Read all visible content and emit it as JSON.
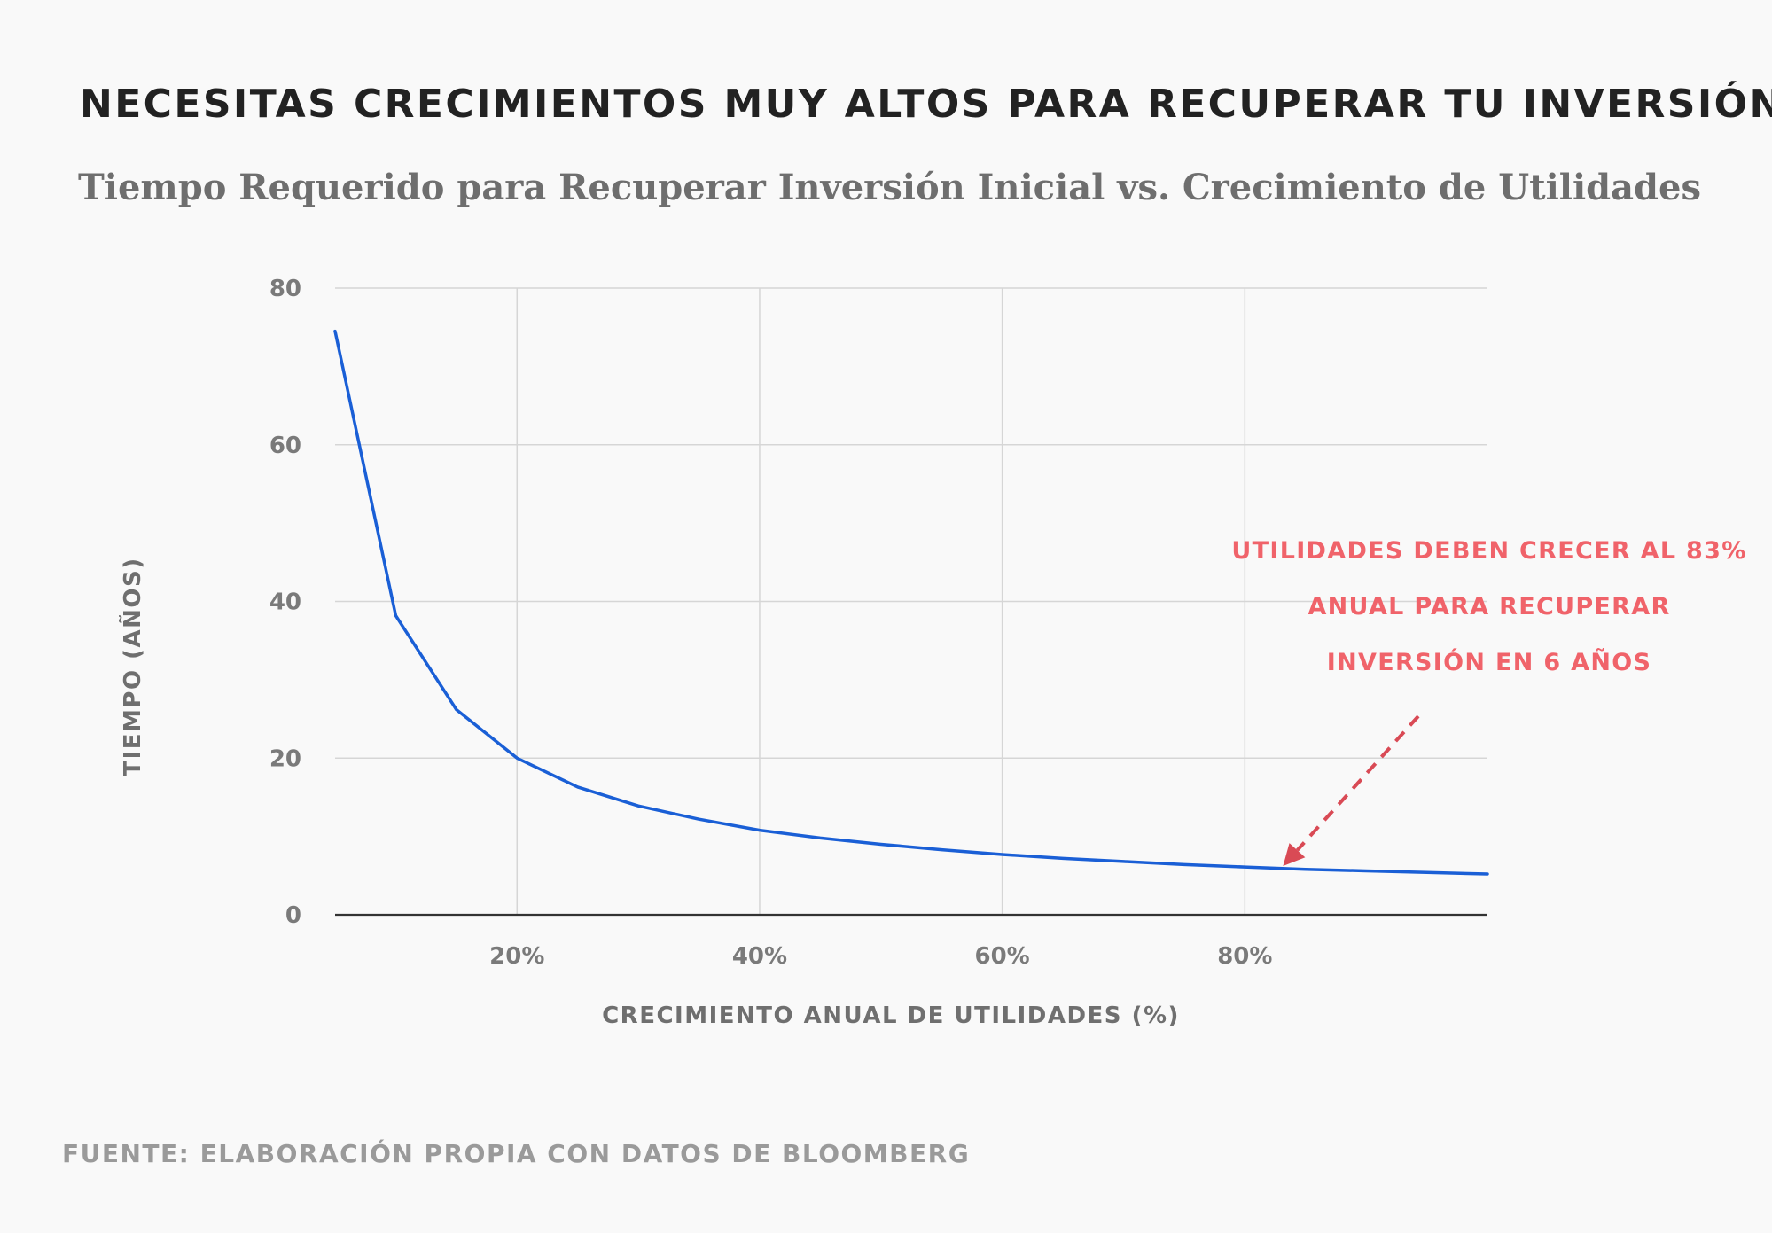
{
  "header": {
    "title": "NECESITAS CRECIMIENTOS MUY ALTOS PARA RECUPERAR TU INVERSIÓN",
    "subtitle": "Tiempo Requerido para Recuperar Inversión Inicial vs. Crecimiento de Utilidades"
  },
  "footer": {
    "source": "FUENTE: ELABORACIÓN PROPIA CON DATOS DE BLOOMBERG"
  },
  "chart_data": {
    "type": "line",
    "title": "Tiempo Requerido para Recuperar Inversión Inicial vs. Crecimiento de Utilidades",
    "xlabel": "CRECIMIENTO ANUAL DE UTILIDADES (%)",
    "ylabel": "TIEMPO (AÑOS)",
    "xlim": [
      5,
      100
    ],
    "ylim": [
      0,
      80
    ],
    "x_ticks": [
      20,
      40,
      60,
      80
    ],
    "x_tick_labels": [
      "20%",
      "40%",
      "60%",
      "80%"
    ],
    "y_ticks": [
      0,
      20,
      40,
      60,
      80
    ],
    "y_tick_labels": [
      "0",
      "20",
      "40",
      "60",
      "80"
    ],
    "grid": true,
    "series": [
      {
        "name": "Tiempo (años)",
        "color": "#1a5fd6",
        "x": [
          5,
          10,
          15,
          20,
          25,
          30,
          35,
          40,
          45,
          50,
          55,
          60,
          65,
          70,
          75,
          80,
          85,
          90,
          95,
          100
        ],
        "y": [
          74.5,
          38.2,
          26.2,
          20,
          16.3,
          13.9,
          12.2,
          10.8,
          9.8,
          9.0,
          8.3,
          7.7,
          7.2,
          6.8,
          6.4,
          6.1,
          5.8,
          5.6,
          5.4,
          5.2
        ]
      }
    ],
    "annotation": {
      "lines": [
        "UTILIDADES DEBEN CRECER AL 83%",
        "ANUAL PARA RECUPERAR",
        "INVERSIÓN EN 6 AÑOS"
      ],
      "target_x": 83,
      "target_y": 6,
      "color": "#d94a55",
      "text_color": "#f0636a"
    },
    "colors": {
      "grid": "#d6d6d6",
      "baseline": "#333333"
    }
  }
}
